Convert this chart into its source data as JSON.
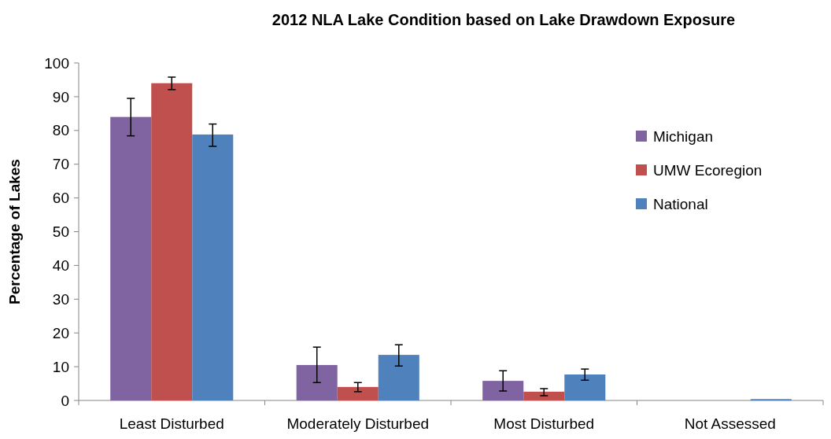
{
  "chart_data": {
    "type": "bar",
    "title": "2012 NLA Lake Condition based on Lake Drawdown Exposure",
    "ylabel": "Percentage of Lakes",
    "categories": [
      "Least Disturbed",
      "Moderately Disturbed",
      "Most Disturbed",
      "Not Assessed"
    ],
    "series": [
      {
        "name": "Michigan",
        "color": "#8064a2",
        "values": [
          84.0,
          10.5,
          5.8,
          0
        ],
        "errors": [
          [
            78.4,
            89.5
          ],
          [
            5.3,
            15.8
          ],
          [
            2.8,
            8.8
          ],
          null
        ]
      },
      {
        "name": "UMW Ecoregion",
        "color": "#c0504d",
        "values": [
          94.0,
          4.0,
          2.6,
          0
        ],
        "errors": [
          [
            92.1,
            95.8
          ],
          [
            2.6,
            5.3
          ],
          [
            1.4,
            3.5
          ],
          null
        ]
      },
      {
        "name": "National",
        "color": "#4f81bd",
        "values": [
          78.8,
          13.5,
          7.7,
          0.4
        ],
        "errors": [
          [
            75.3,
            81.9
          ],
          [
            10.2,
            16.5
          ],
          [
            6.0,
            9.3
          ],
          null
        ]
      }
    ],
    "ylim": [
      0,
      100
    ],
    "yticks": [
      0,
      10,
      20,
      30,
      40,
      50,
      60,
      70,
      80,
      90,
      100
    ],
    "grid": false,
    "legend": "right"
  }
}
